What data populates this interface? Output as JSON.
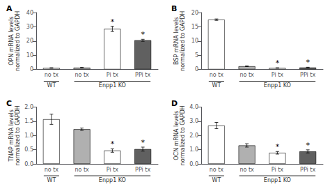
{
  "chart_data": [
    {
      "type": "bar",
      "title": "A",
      "ylabel": "OPN mRNA levels\nnormalized to GAPDH",
      "categories": [
        "no tx",
        "no tx",
        "Pi tx",
        "PPi tx"
      ],
      "groups": [
        "WT",
        "Enpp1 KO",
        "Enpp1 KO",
        "Enpp1 KO"
      ],
      "values": [
        1.0,
        1.2,
        28.5,
        20.5
      ],
      "yerr": [
        0.2,
        0.2,
        1.8,
        0.7
      ],
      "annotations": [
        null,
        null,
        "*",
        "*"
      ],
      "colors": [
        "white",
        "#b0b0b0",
        "white",
        "#606060"
      ],
      "ylim": [
        0,
        40
      ],
      "yticks": [
        0,
        10,
        20,
        30,
        40
      ],
      "grid": false
    },
    {
      "type": "bar",
      "title": "B",
      "ylabel": "BSP mRNA levels\nnormalized to GAPDH",
      "categories": [
        "no tx",
        "no tx",
        "Pi tx",
        "PPi tx"
      ],
      "groups": [
        "WT",
        "Enpp1 KO",
        "Enpp1 KO",
        "Enpp1 KO"
      ],
      "values": [
        17.5,
        1.1,
        0.5,
        0.65
      ],
      "yerr": [
        0.25,
        0.12,
        0.08,
        0.12
      ],
      "annotations": [
        null,
        null,
        "*",
        "*"
      ],
      "colors": [
        "white",
        "#b0b0b0",
        "white",
        "#606060"
      ],
      "ylim": [
        0,
        20
      ],
      "yticks": [
        0,
        5,
        10,
        15,
        20
      ],
      "grid": false
    },
    {
      "type": "bar",
      "title": "C",
      "ylabel": "TNAP mRNA levels\nnormalized to GAPDH",
      "categories": [
        "no tx",
        "no tx",
        "Pi tx",
        "PPi tx"
      ],
      "groups": [
        "WT",
        "Enpp1 KO",
        "Enpp1 KO",
        "Enpp1 KO"
      ],
      "values": [
        1.57,
        1.22,
        0.47,
        0.52
      ],
      "yerr": [
        0.18,
        0.04,
        0.06,
        0.07
      ],
      "annotations": [
        null,
        null,
        "*",
        "*"
      ],
      "colors": [
        "white",
        "#b0b0b0",
        "white",
        "#606060"
      ],
      "ylim": [
        0,
        2
      ],
      "yticks": [
        {
          "value": 0,
          "label": "0.0"
        },
        0.5,
        {
          "value": 1,
          "label": "1.0"
        },
        1.5,
        {
          "value": 2,
          "label": "2.0"
        }
      ],
      "grid": false
    },
    {
      "type": "bar",
      "title": "D",
      "ylabel": "OCN mRNA levels\nnormalized to GAPDH",
      "categories": [
        "no tx",
        "no tx",
        "Pi tx",
        "PPi tx"
      ],
      "groups": [
        "WT",
        "Enpp1 KO",
        "Enpp1 KO",
        "Enpp1 KO"
      ],
      "values": [
        2.7,
        1.3,
        0.78,
        0.88
      ],
      "yerr": [
        0.22,
        0.12,
        0.09,
        0.11
      ],
      "annotations": [
        null,
        null,
        "*",
        "*"
      ],
      "colors": [
        "white",
        "#b0b0b0",
        "white",
        "#606060"
      ],
      "ylim": [
        0,
        4
      ],
      "yticks": [
        {
          "value": 0,
          "label": "0.0"
        },
        {
          "value": 1,
          "label": "1.0"
        },
        {
          "value": 2,
          "label": "2.0"
        },
        {
          "value": 3,
          "label": "3.0"
        },
        {
          "value": 4,
          "label": "4.0"
        }
      ],
      "grid": false
    }
  ]
}
